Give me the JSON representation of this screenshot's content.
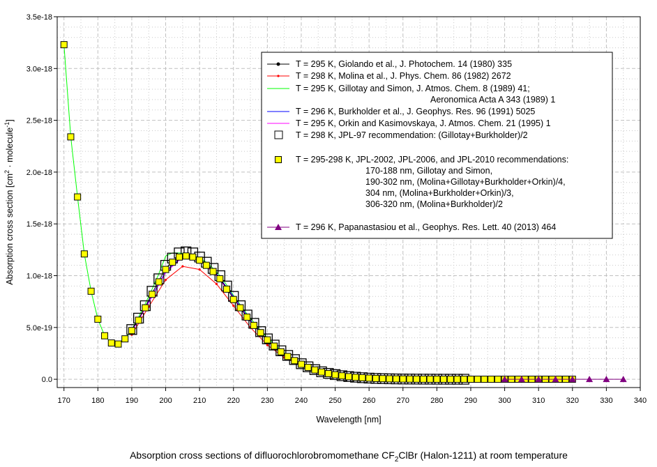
{
  "chart_data": {
    "type": "line",
    "title": "Absorption cross sections of difluorochlorobromomethane CF2ClBr (Halon-1211) at room temperature",
    "title_parts": {
      "pre": "Absorption cross sections of difluorochlorobromomethane CF",
      "sub": "2",
      "post": "ClBr (Halon-1211) at room temperature"
    },
    "xlabel": "Wavelength [nm]",
    "ylabel": "Absorption cross section [cm2 · molecule-1]",
    "ylabel_parts": {
      "a": "Absorption cross section [cm",
      "sup1": "2",
      "b": " · molecule",
      "sup2": "-1",
      "c": "]"
    },
    "xlim": [
      168,
      340
    ],
    "ylim": [
      -8e-20,
      3.5e-18
    ],
    "xticks": [
      "170",
      "180",
      "190",
      "200",
      "210",
      "220",
      "230",
      "240",
      "250",
      "260",
      "270",
      "280",
      "290",
      "300",
      "310",
      "320",
      "330",
      "340"
    ],
    "yticks": [
      "0.0",
      "5.0e-19",
      "1.0e-18",
      "1.5e-18",
      "2.0e-18",
      "2.5e-18",
      "3.0e-18",
      "3.5e-18"
    ],
    "grid": true,
    "legend_placement": "top-right",
    "y_unit": 1e-18,
    "series": [
      {
        "name": "T = 295 K, Giolando et al., J. Photochem. 14 (1980) 335",
        "color": "#000000",
        "marker": "dot",
        "x": [
          190,
          192,
          194,
          196,
          198,
          200,
          202,
          204,
          206,
          208,
          210,
          212,
          214,
          216,
          218,
          220,
          222,
          224,
          226,
          228,
          230
        ],
        "y": [
          0.48,
          0.58,
          0.7,
          0.83,
          0.95,
          1.07,
          1.14,
          1.19,
          1.2,
          1.19,
          1.16,
          1.11,
          1.05,
          0.97,
          0.88,
          0.78,
          0.69,
          0.6,
          0.52,
          0.45,
          0.38
        ]
      },
      {
        "name": "T = 298 K, Molina et al., J. Phys. Chem. 86 (1982) 2672",
        "color": "#ff0000",
        "marker": "plus",
        "x": [
          190,
          195,
          200,
          205,
          210,
          215,
          220,
          225,
          230,
          235,
          240,
          245,
          250,
          255,
          260,
          265,
          270,
          275,
          280,
          285,
          290,
          295,
          300,
          305,
          310,
          315,
          320
        ],
        "y": [
          0.43,
          0.7,
          0.96,
          1.09,
          1.06,
          0.92,
          0.71,
          0.5,
          0.33,
          0.21,
          0.13,
          0.075,
          0.04,
          0.022,
          0.011,
          0.006,
          0.003,
          0.0015,
          0.001,
          0.0006,
          0.0004,
          0.0003,
          0.0002,
          0.0002,
          0.0001,
          0.0001,
          0.0001
        ]
      },
      {
        "name": "T = 295 K, Gillotay and Simon, J. Atmos. Chem. 8 (1989) 41;",
        "name_line2": "Aeronomica Acta A 343 (1989) 1",
        "color": "#00ff00",
        "marker": "none",
        "x": [
          170,
          172,
          174,
          176,
          178,
          180,
          182,
          184,
          186,
          188,
          190,
          192,
          194,
          196,
          198,
          200,
          202,
          204,
          206,
          208,
          210,
          212,
          214,
          216,
          218,
          220,
          222,
          224,
          226,
          228,
          230,
          232,
          234,
          236,
          238,
          240,
          244,
          248,
          252,
          256,
          260,
          270,
          280,
          290,
          300
        ],
        "y": [
          3.23,
          2.34,
          1.76,
          1.21,
          0.85,
          0.58,
          0.42,
          0.35,
          0.34,
          0.39,
          0.48,
          0.6,
          0.73,
          0.87,
          1.02,
          1.19,
          1.22,
          1.22,
          1.21,
          1.2,
          1.17,
          1.13,
          1.07,
          1.0,
          0.91,
          0.81,
          0.72,
          0.63,
          0.55,
          0.47,
          0.4,
          0.34,
          0.28,
          0.23,
          0.19,
          0.15,
          0.095,
          0.058,
          0.035,
          0.02,
          0.012,
          0.003,
          0.001,
          0.0004,
          0.0002
        ]
      },
      {
        "name": "T = 296 K, Burkholder et al., J. Geophys. Res. 96 (1991) 5025",
        "color": "#0000ff",
        "marker": "none",
        "x": [
          190,
          195,
          200,
          205,
          210,
          215,
          220,
          225,
          230,
          235,
          240,
          245,
          250,
          255,
          260,
          270,
          280,
          290,
          300,
          310,
          320
        ],
        "y": [
          0.47,
          0.75,
          1.04,
          1.19,
          1.16,
          1.02,
          0.8,
          0.57,
          0.38,
          0.24,
          0.145,
          0.085,
          0.046,
          0.025,
          0.012,
          0.003,
          0.001,
          0.0004,
          0.0002,
          0.0001,
          0.0001
        ]
      },
      {
        "name": "T = 295 K, Orkin and Kasimovskaya, J. Atmos. Chem. 21 (1995) 1",
        "color": "#ff00ff",
        "marker": "none",
        "x": [
          190,
          195,
          200,
          205,
          210,
          215,
          220,
          225,
          230,
          235,
          240,
          245,
          250,
          255,
          260,
          270,
          280,
          290,
          300,
          310,
          320
        ],
        "y": [
          0.46,
          0.74,
          1.03,
          1.18,
          1.15,
          1.0,
          0.79,
          0.56,
          0.37,
          0.235,
          0.14,
          0.082,
          0.045,
          0.024,
          0.012,
          0.003,
          0.001,
          0.0004,
          0.0002,
          0.0001,
          0.0001
        ]
      },
      {
        "name": "T = 298 K, JPL-97 recommendation: (Gillotay+Burkholder)/2",
        "color": "#000000",
        "marker": "open-square",
        "x": [
          190,
          192,
          194,
          196,
          198,
          200,
          202,
          204,
          206,
          208,
          210,
          212,
          214,
          216,
          218,
          220,
          222,
          224,
          226,
          228,
          230,
          232,
          234,
          236,
          238,
          240,
          242,
          244,
          246,
          248,
          250,
          252,
          254,
          256,
          258,
          260,
          262,
          264,
          266,
          268,
          270,
          272,
          274,
          276,
          278,
          280,
          282,
          284,
          286,
          288
        ],
        "y": [
          0.48,
          0.59,
          0.71,
          0.85,
          0.97,
          1.1,
          1.17,
          1.22,
          1.23,
          1.22,
          1.18,
          1.13,
          1.07,
          1.0,
          0.9,
          0.8,
          0.71,
          0.62,
          0.54,
          0.46,
          0.39,
          0.33,
          0.275,
          0.23,
          0.19,
          0.15,
          0.12,
          0.093,
          0.072,
          0.057,
          0.045,
          0.034,
          0.026,
          0.02,
          0.015,
          0.011,
          0.008,
          0.006,
          0.0045,
          0.0035,
          0.0027,
          0.002,
          0.0015,
          0.0012,
          0.001,
          0.0008,
          0.0006,
          0.0005,
          0.0004,
          0.0003
        ]
      },
      {
        "name": "T = 295-298 K, JPL-2002, JPL-2006, and JPL-2010 recommendations:",
        "name_lines": [
          "170-188 nm, Gillotay and Simon,",
          "190-302 nm, (Molina+Gillotay+Burkholder+Orkin)/4,",
          "304 nm, (Molina+Burkholder+Orkin)/3,",
          "306-320 nm, (Molina+Burkholder)/2"
        ],
        "color": "#ffff00",
        "marker": "filled-square",
        "x": [
          170,
          172,
          174,
          176,
          178,
          180,
          182,
          184,
          186,
          188,
          190,
          192,
          194,
          196,
          198,
          200,
          202,
          204,
          206,
          208,
          210,
          212,
          214,
          216,
          218,
          220,
          222,
          224,
          226,
          228,
          230,
          232,
          234,
          236,
          238,
          240,
          242,
          244,
          246,
          248,
          250,
          252,
          254,
          256,
          258,
          260,
          262,
          264,
          266,
          268,
          270,
          272,
          274,
          276,
          278,
          280,
          282,
          284,
          286,
          288,
          290,
          292,
          294,
          296,
          298,
          300,
          302,
          304,
          306,
          308,
          310,
          312,
          314,
          316,
          318,
          320
        ],
        "y": [
          3.23,
          2.34,
          1.76,
          1.21,
          0.85,
          0.58,
          0.42,
          0.35,
          0.34,
          0.39,
          0.47,
          0.57,
          0.69,
          0.82,
          0.94,
          1.06,
          1.13,
          1.18,
          1.19,
          1.18,
          1.15,
          1.1,
          1.04,
          0.97,
          0.87,
          0.77,
          0.69,
          0.6,
          0.52,
          0.45,
          0.38,
          0.32,
          0.265,
          0.22,
          0.18,
          0.145,
          0.115,
          0.09,
          0.07,
          0.055,
          0.043,
          0.033,
          0.025,
          0.019,
          0.015,
          0.011,
          0.008,
          0.006,
          0.0045,
          0.0035,
          0.0027,
          0.002,
          0.0015,
          0.0012,
          0.001,
          0.0008,
          0.0006,
          0.0005,
          0.0004,
          0.0003,
          0.0003,
          0.0002,
          0.0002,
          0.0002,
          0.0001,
          0.0001,
          0.0001,
          0.0001,
          0.0001,
          0.0001,
          0.0001,
          0.0001,
          0.0001,
          0.0001,
          0.0001,
          0.0001
        ]
      },
      {
        "name": "T = 296 K, Papanastasiou et al., Geophys. Res. Lett. 40 (2013) 464",
        "color": "#800080",
        "marker": "triangle",
        "x": [
          300,
          305,
          310,
          315,
          320,
          325,
          330,
          335
        ],
        "y": [
          0.0002,
          0.0001,
          0.0001,
          0.0001,
          0.0001,
          5e-05,
          3e-05,
          2e-05
        ]
      }
    ]
  }
}
